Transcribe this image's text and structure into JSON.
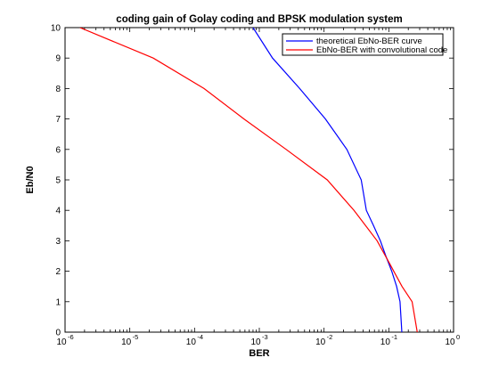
{
  "chart_data": {
    "type": "line",
    "title": "coding gain of Golay coding and BPSK modulation system",
    "xlabel": "BER",
    "ylabel": "Eb/N0",
    "xscale": "log",
    "xlim": [
      1e-06,
      1
    ],
    "ylim": [
      0,
      10
    ],
    "grid": false,
    "legend_position": "top-right",
    "x_ticks": [
      {
        "value": 1e-06,
        "base": "10",
        "exp": "-6"
      },
      {
        "value": 1e-05,
        "base": "10",
        "exp": "-5"
      },
      {
        "value": 0.0001,
        "base": "10",
        "exp": "-4"
      },
      {
        "value": 0.001,
        "base": "10",
        "exp": "-3"
      },
      {
        "value": 0.01,
        "base": "10",
        "exp": "-2"
      },
      {
        "value": 0.1,
        "base": "10",
        "exp": "-1"
      },
      {
        "value": 1,
        "base": "10",
        "exp": "0"
      }
    ],
    "y_ticks": [
      "0",
      "1",
      "2",
      "3",
      "4",
      "5",
      "6",
      "7",
      "8",
      "9",
      "10"
    ],
    "series": [
      {
        "name": "theoretical EbNo-BER curve",
        "color": "#0000ff",
        "points": [
          [
            0.0008,
            10
          ],
          [
            0.0016,
            9
          ],
          [
            0.0042,
            8
          ],
          [
            0.0105,
            7
          ],
          [
            0.0225,
            6
          ],
          [
            0.0375,
            5
          ],
          [
            0.045,
            4
          ],
          [
            0.058,
            3.5
          ],
          [
            0.074,
            3
          ],
          [
            0.09,
            2.5
          ],
          [
            0.111,
            2
          ],
          [
            0.132,
            1.5
          ],
          [
            0.149,
            1
          ],
          [
            0.159,
            0
          ]
        ]
      },
      {
        "name": "EbNo-BER with convolutional code",
        "color": "#ff0000",
        "points": [
          [
            1.7e-06,
            10
          ],
          [
            2.3e-05,
            9
          ],
          [
            0.00014,
            8
          ],
          [
            0.00058,
            7
          ],
          [
            0.0026,
            6
          ],
          [
            0.0112,
            5
          ],
          [
            0.029,
            4
          ],
          [
            0.066,
            3
          ],
          [
            0.1,
            2.3
          ],
          [
            0.16,
            1.5
          ],
          [
            0.229,
            1
          ],
          [
            0.275,
            0
          ]
        ]
      }
    ]
  }
}
